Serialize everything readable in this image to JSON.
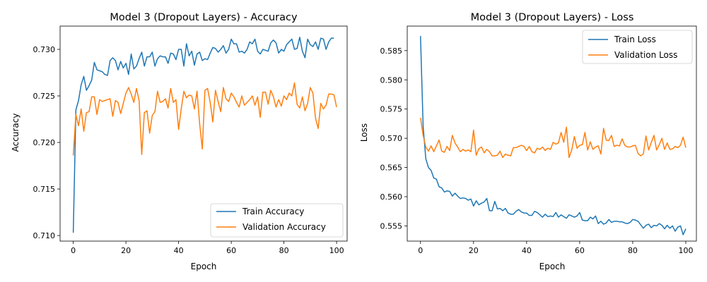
{
  "chart_data": [
    {
      "type": "line",
      "title": "Model 3 (Dropout Layers) - Accuracy",
      "xlabel": "Epoch",
      "ylabel": "Accuracy",
      "xlim": [
        -5,
        104
      ],
      "ylim": [
        0.7094,
        0.7325
      ],
      "xticks": [
        0,
        20,
        40,
        60,
        80,
        100
      ],
      "xtick_labels": [
        "0",
        "20",
        "40",
        "60",
        "80",
        "100"
      ],
      "yticks": [
        0.71,
        0.715,
        0.72,
        0.725,
        0.73
      ],
      "ytick_labels": [
        "0.710",
        "0.715",
        "0.720",
        "0.725",
        "0.730"
      ],
      "grid": false,
      "legend_position": "lower-right",
      "series": [
        {
          "name": "Train Accuracy",
          "color": "#1f77b4",
          "values": [
            0.7103,
            0.7235,
            0.7245,
            0.7262,
            0.7271,
            0.7256,
            0.7261,
            0.7267,
            0.7286,
            0.7278,
            0.7277,
            0.7276,
            0.7273,
            0.7272,
            0.7288,
            0.7291,
            0.7288,
            0.7278,
            0.7287,
            0.728,
            0.7285,
            0.7273,
            0.7295,
            0.7279,
            0.7282,
            0.729,
            0.7297,
            0.7282,
            0.7292,
            0.7292,
            0.7297,
            0.7282,
            0.729,
            0.7293,
            0.7292,
            0.7292,
            0.7285,
            0.7296,
            0.7295,
            0.7289,
            0.73,
            0.73,
            0.7282,
            0.7306,
            0.7293,
            0.7298,
            0.7283,
            0.7295,
            0.7297,
            0.7288,
            0.729,
            0.7289,
            0.7296,
            0.7302,
            0.7301,
            0.7297,
            0.73,
            0.7304,
            0.7296,
            0.73,
            0.7311,
            0.7306,
            0.7306,
            0.7297,
            0.7298,
            0.7296,
            0.73,
            0.7308,
            0.7306,
            0.7311,
            0.7298,
            0.7295,
            0.73,
            0.7299,
            0.7298,
            0.7307,
            0.731,
            0.7307,
            0.7296,
            0.73,
            0.7298,
            0.7305,
            0.7308,
            0.7311,
            0.73,
            0.7301,
            0.7313,
            0.7298,
            0.7291,
            0.7311,
            0.7305,
            0.7303,
            0.7308,
            0.73,
            0.7312,
            0.7311,
            0.73,
            0.7308,
            0.7312,
            0.7312
          ]
        },
        {
          "name": "Validation Accuracy",
          "color": "#ff7f0e",
          "values": [
            0.7186,
            0.723,
            0.7218,
            0.7236,
            0.7212,
            0.7232,
            0.7233,
            0.7249,
            0.7249,
            0.723,
            0.7246,
            0.7244,
            0.7245,
            0.7246,
            0.7247,
            0.7228,
            0.7245,
            0.7243,
            0.7231,
            0.7242,
            0.7253,
            0.7259,
            0.7252,
            0.7243,
            0.7258,
            0.7245,
            0.7187,
            0.7232,
            0.7234,
            0.721,
            0.7229,
            0.7233,
            0.7255,
            0.7243,
            0.7244,
            0.7247,
            0.7237,
            0.7258,
            0.7243,
            0.7246,
            0.7214,
            0.7236,
            0.7255,
            0.7248,
            0.7251,
            0.725,
            0.7236,
            0.7255,
            0.722,
            0.7193,
            0.7256,
            0.7258,
            0.7243,
            0.7222,
            0.7256,
            0.7244,
            0.7233,
            0.7259,
            0.7247,
            0.7244,
            0.7253,
            0.7249,
            0.7243,
            0.7238,
            0.725,
            0.724,
            0.7243,
            0.7246,
            0.725,
            0.724,
            0.7249,
            0.7227,
            0.7254,
            0.7254,
            0.7241,
            0.7256,
            0.7249,
            0.7238,
            0.7246,
            0.7239,
            0.725,
            0.7246,
            0.7253,
            0.725,
            0.7264,
            0.7241,
            0.7237,
            0.7249,
            0.7234,
            0.7242,
            0.7259,
            0.7253,
            0.7226,
            0.7215,
            0.7242,
            0.7236,
            0.724,
            0.7252,
            0.7252,
            0.7251,
            0.7238
          ]
        }
      ]
    },
    {
      "type": "line",
      "title": "Model 3 (Dropout Layers) - Loss",
      "xlabel": "Epoch",
      "ylabel": "Loss",
      "xlim": [
        -5,
        104
      ],
      "ylim": [
        0.5524,
        0.5892
      ],
      "xticks": [
        0,
        20,
        40,
        60,
        80,
        100
      ],
      "xtick_labels": [
        "0",
        "20",
        "40",
        "60",
        "80",
        "100"
      ],
      "yticks": [
        0.555,
        0.56,
        0.565,
        0.57,
        0.575,
        0.58,
        0.585
      ],
      "ytick_labels": [
        "0.555",
        "0.560",
        "0.565",
        "0.570",
        "0.575",
        "0.580",
        "0.585"
      ],
      "grid": false,
      "legend_position": "upper-right",
      "series": [
        {
          "name": "Train Loss",
          "color": "#1f77b4",
          "values": [
            0.5875,
            0.572,
            0.5665,
            0.565,
            0.5645,
            0.5632,
            0.563,
            0.5617,
            0.5615,
            0.5608,
            0.561,
            0.5609,
            0.5601,
            0.5606,
            0.5601,
            0.5597,
            0.5598,
            0.5597,
            0.5594,
            0.5596,
            0.5584,
            0.5593,
            0.5586,
            0.5589,
            0.5591,
            0.5597,
            0.5576,
            0.5576,
            0.5592,
            0.5579,
            0.558,
            0.5576,
            0.558,
            0.5572,
            0.557,
            0.557,
            0.5575,
            0.5578,
            0.5574,
            0.5572,
            0.5572,
            0.5568,
            0.5568,
            0.5575,
            0.5573,
            0.5569,
            0.5565,
            0.557,
            0.5566,
            0.5567,
            0.5566,
            0.5573,
            0.5565,
            0.5569,
            0.5566,
            0.5563,
            0.5569,
            0.5567,
            0.5565,
            0.5567,
            0.5573,
            0.556,
            0.5559,
            0.5559,
            0.5565,
            0.5562,
            0.5567,
            0.5554,
            0.5558,
            0.5553,
            0.5555,
            0.5561,
            0.5556,
            0.5558,
            0.5558,
            0.5557,
            0.5557,
            0.5555,
            0.5554,
            0.5556,
            0.5561,
            0.556,
            0.5558,
            0.5552,
            0.5546,
            0.5551,
            0.5553,
            0.5547,
            0.5551,
            0.555,
            0.5554,
            0.5551,
            0.5545,
            0.5551,
            0.5546,
            0.555,
            0.5541,
            0.5548,
            0.555,
            0.5535,
            0.5545
          ]
        },
        {
          "name": "Validation Loss",
          "color": "#ff7f0e",
          "values": [
            0.5735,
            0.5705,
            0.5685,
            0.5678,
            0.5687,
            0.5677,
            0.5687,
            0.5697,
            0.5678,
            0.5676,
            0.5686,
            0.5679,
            0.5705,
            0.5692,
            0.5685,
            0.5677,
            0.5681,
            0.5678,
            0.568,
            0.5677,
            0.5714,
            0.5671,
            0.5682,
            0.5685,
            0.5675,
            0.5681,
            0.5677,
            0.567,
            0.567,
            0.5671,
            0.5678,
            0.5667,
            0.5673,
            0.5671,
            0.567,
            0.5684,
            0.5684,
            0.5686,
            0.5688,
            0.5686,
            0.5679,
            0.5686,
            0.5677,
            0.5675,
            0.5683,
            0.5681,
            0.5685,
            0.5679,
            0.5683,
            0.5681,
            0.5693,
            0.569,
            0.5692,
            0.571,
            0.5693,
            0.5719,
            0.5667,
            0.568,
            0.5703,
            0.5683,
            0.5688,
            0.5689,
            0.571,
            0.568,
            0.5694,
            0.5681,
            0.5685,
            0.5687,
            0.5673,
            0.5717,
            0.5697,
            0.5696,
            0.5705,
            0.5686,
            0.5688,
            0.5687,
            0.5699,
            0.5688,
            0.5685,
            0.5685,
            0.5687,
            0.5688,
            0.5674,
            0.567,
            0.5673,
            0.5704,
            0.568,
            0.5693,
            0.5705,
            0.568,
            0.5689,
            0.57,
            0.5681,
            0.5692,
            0.5681,
            0.5682,
            0.5686,
            0.5684,
            0.5688,
            0.5702,
            0.5684
          ]
        }
      ]
    }
  ]
}
